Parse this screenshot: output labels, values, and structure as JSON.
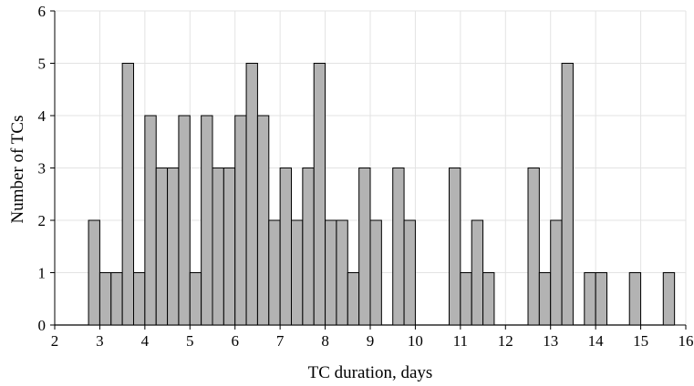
{
  "chart_data": {
    "type": "bar",
    "title": "",
    "xlabel": "TC duration, days",
    "ylabel": "Number of TCs",
    "xlim": [
      2,
      16
    ],
    "ylim": [
      0,
      6
    ],
    "xticks": [
      2,
      3,
      4,
      5,
      6,
      7,
      8,
      9,
      10,
      11,
      12,
      13,
      14,
      15,
      16
    ],
    "yticks": [
      0,
      1,
      2,
      3,
      4,
      5,
      6
    ],
    "grid": true,
    "bin_width": 0.25,
    "bar_color": "#b3b3b3",
    "bin_starts": [
      2.75,
      3.0,
      3.25,
      3.5,
      3.75,
      4.0,
      4.25,
      4.5,
      4.75,
      5.0,
      5.25,
      5.5,
      5.75,
      6.0,
      6.25,
      6.5,
      6.75,
      7.0,
      7.25,
      7.5,
      7.75,
      8.0,
      8.25,
      8.5,
      8.75,
      9.0,
      9.25,
      9.5,
      9.75,
      10.0,
      10.25,
      10.5,
      10.75,
      11.0,
      11.25,
      11.5,
      11.75,
      12.0,
      12.25,
      12.5,
      12.75,
      13.0,
      13.25,
      13.5,
      13.75,
      14.0,
      14.25,
      14.5,
      14.75,
      15.0,
      15.25,
      15.5
    ],
    "values": [
      2,
      1,
      1,
      5,
      1,
      4,
      3,
      3,
      4,
      1,
      4,
      3,
      3,
      4,
      5,
      4,
      2,
      3,
      2,
      3,
      5,
      2,
      2,
      1,
      3,
      2,
      0,
      3,
      2,
      0,
      0,
      0,
      3,
      1,
      2,
      1,
      0,
      0,
      0,
      3,
      1,
      2,
      5,
      0,
      1,
      1,
      0,
      0,
      1,
      0,
      0,
      1
    ]
  }
}
